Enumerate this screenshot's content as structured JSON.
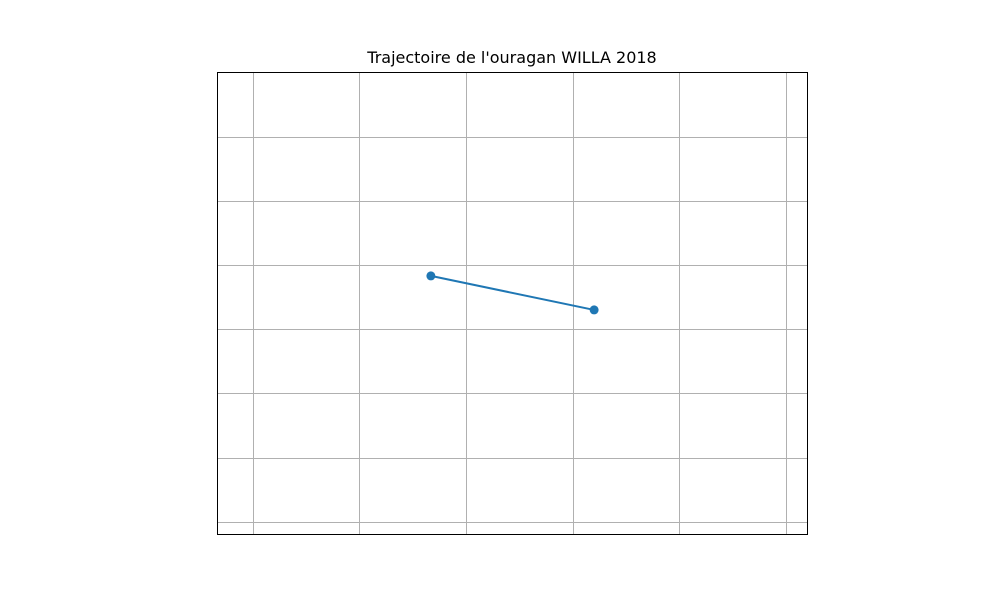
{
  "chart_data": {
    "type": "line",
    "title": "Trajectoire de l'ouragan WILLA 2018",
    "xlabel": "",
    "ylabel": "",
    "grid": true,
    "xlim": [
      -0.33,
      5.2
    ],
    "ylim": [
      -0.2,
      7.0
    ],
    "xticks": [
      0,
      1,
      2,
      3,
      4,
      5
    ],
    "yticks": [
      0,
      1,
      2,
      3,
      4,
      5,
      6
    ],
    "series": [
      {
        "x": [
          1.67,
          3.2
        ],
        "y": [
          3.83,
          3.3
        ],
        "color": "#1f77b4",
        "marker": "circle"
      }
    ]
  }
}
